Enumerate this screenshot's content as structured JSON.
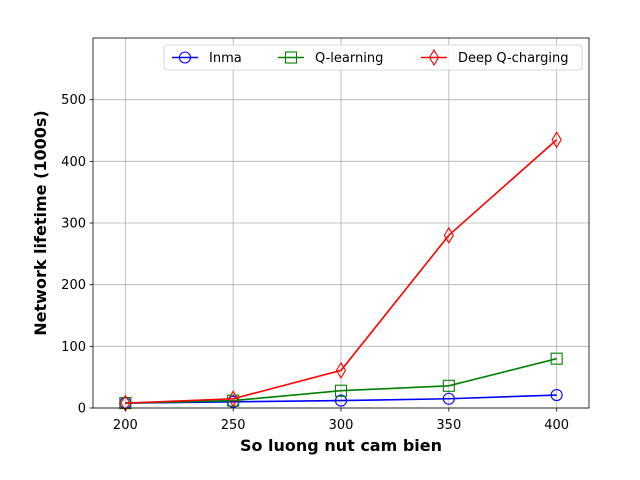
{
  "chart_data": {
    "type": "line",
    "title": "",
    "xlabel": "So luong nut cam bien",
    "ylabel": "Network lifetime (1000s)",
    "x": [
      200,
      250,
      300,
      350,
      400
    ],
    "xlim": [
      185,
      415
    ],
    "ylim": [
      0,
      600
    ],
    "xticks": [
      200,
      250,
      300,
      350,
      400
    ],
    "yticks": [
      0,
      100,
      200,
      300,
      400,
      500
    ],
    "grid": true,
    "legend_position": "top-right",
    "series": [
      {
        "name": "Inma",
        "color": "#0000ff",
        "marker": "circle",
        "values": [
          8,
          10,
          12,
          15,
          21
        ]
      },
      {
        "name": "Q-learning",
        "color": "#008000",
        "marker": "square",
        "values": [
          8,
          12,
          28,
          36,
          80
        ]
      },
      {
        "name": "Deep Q-charging",
        "color": "#ff0000",
        "marker": "thin_diamond",
        "values": [
          8,
          15,
          61,
          280,
          435
        ]
      }
    ]
  }
}
